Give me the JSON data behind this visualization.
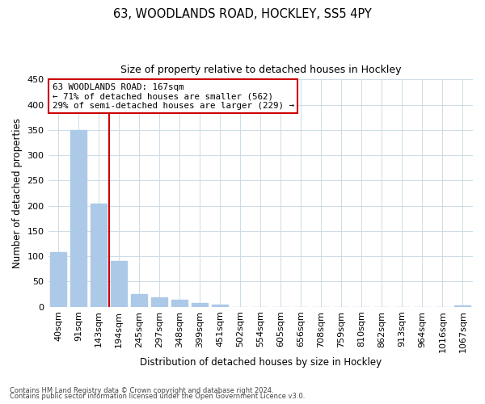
{
  "title1": "63, WOODLANDS ROAD, HOCKLEY, SS5 4PY",
  "title2": "Size of property relative to detached houses in Hockley",
  "xlabel": "Distribution of detached houses by size in Hockley",
  "ylabel": "Number of detached properties",
  "bar_labels": [
    "40sqm",
    "91sqm",
    "143sqm",
    "194sqm",
    "245sqm",
    "297sqm",
    "348sqm",
    "399sqm",
    "451sqm",
    "502sqm",
    "554sqm",
    "605sqm",
    "656sqm",
    "708sqm",
    "759sqm",
    "810sqm",
    "862sqm",
    "913sqm",
    "964sqm",
    "1016sqm",
    "1067sqm"
  ],
  "bar_values": [
    108,
    350,
    204,
    90,
    25,
    19,
    14,
    8,
    5,
    0,
    0,
    0,
    0,
    0,
    0,
    0,
    0,
    0,
    0,
    0,
    3
  ],
  "bar_color": "#adc9e8",
  "vline_color": "#cc0000",
  "vline_x": 2.5,
  "ylim": [
    0,
    450
  ],
  "yticks": [
    0,
    50,
    100,
    150,
    200,
    250,
    300,
    350,
    400,
    450
  ],
  "annotation_title": "63 WOODLANDS ROAD: 167sqm",
  "annotation_line1": "← 71% of detached houses are smaller (562)",
  "annotation_line2": "29% of semi-detached houses are larger (229) →",
  "annotation_box_color": "#ffffff",
  "annotation_box_edge": "#cc0000",
  "footer1": "Contains HM Land Registry data © Crown copyright and database right 2024.",
  "footer2": "Contains public sector information licensed under the Open Government Licence v3.0.",
  "background_color": "#ffffff",
  "grid_color": "#ccdde8"
}
